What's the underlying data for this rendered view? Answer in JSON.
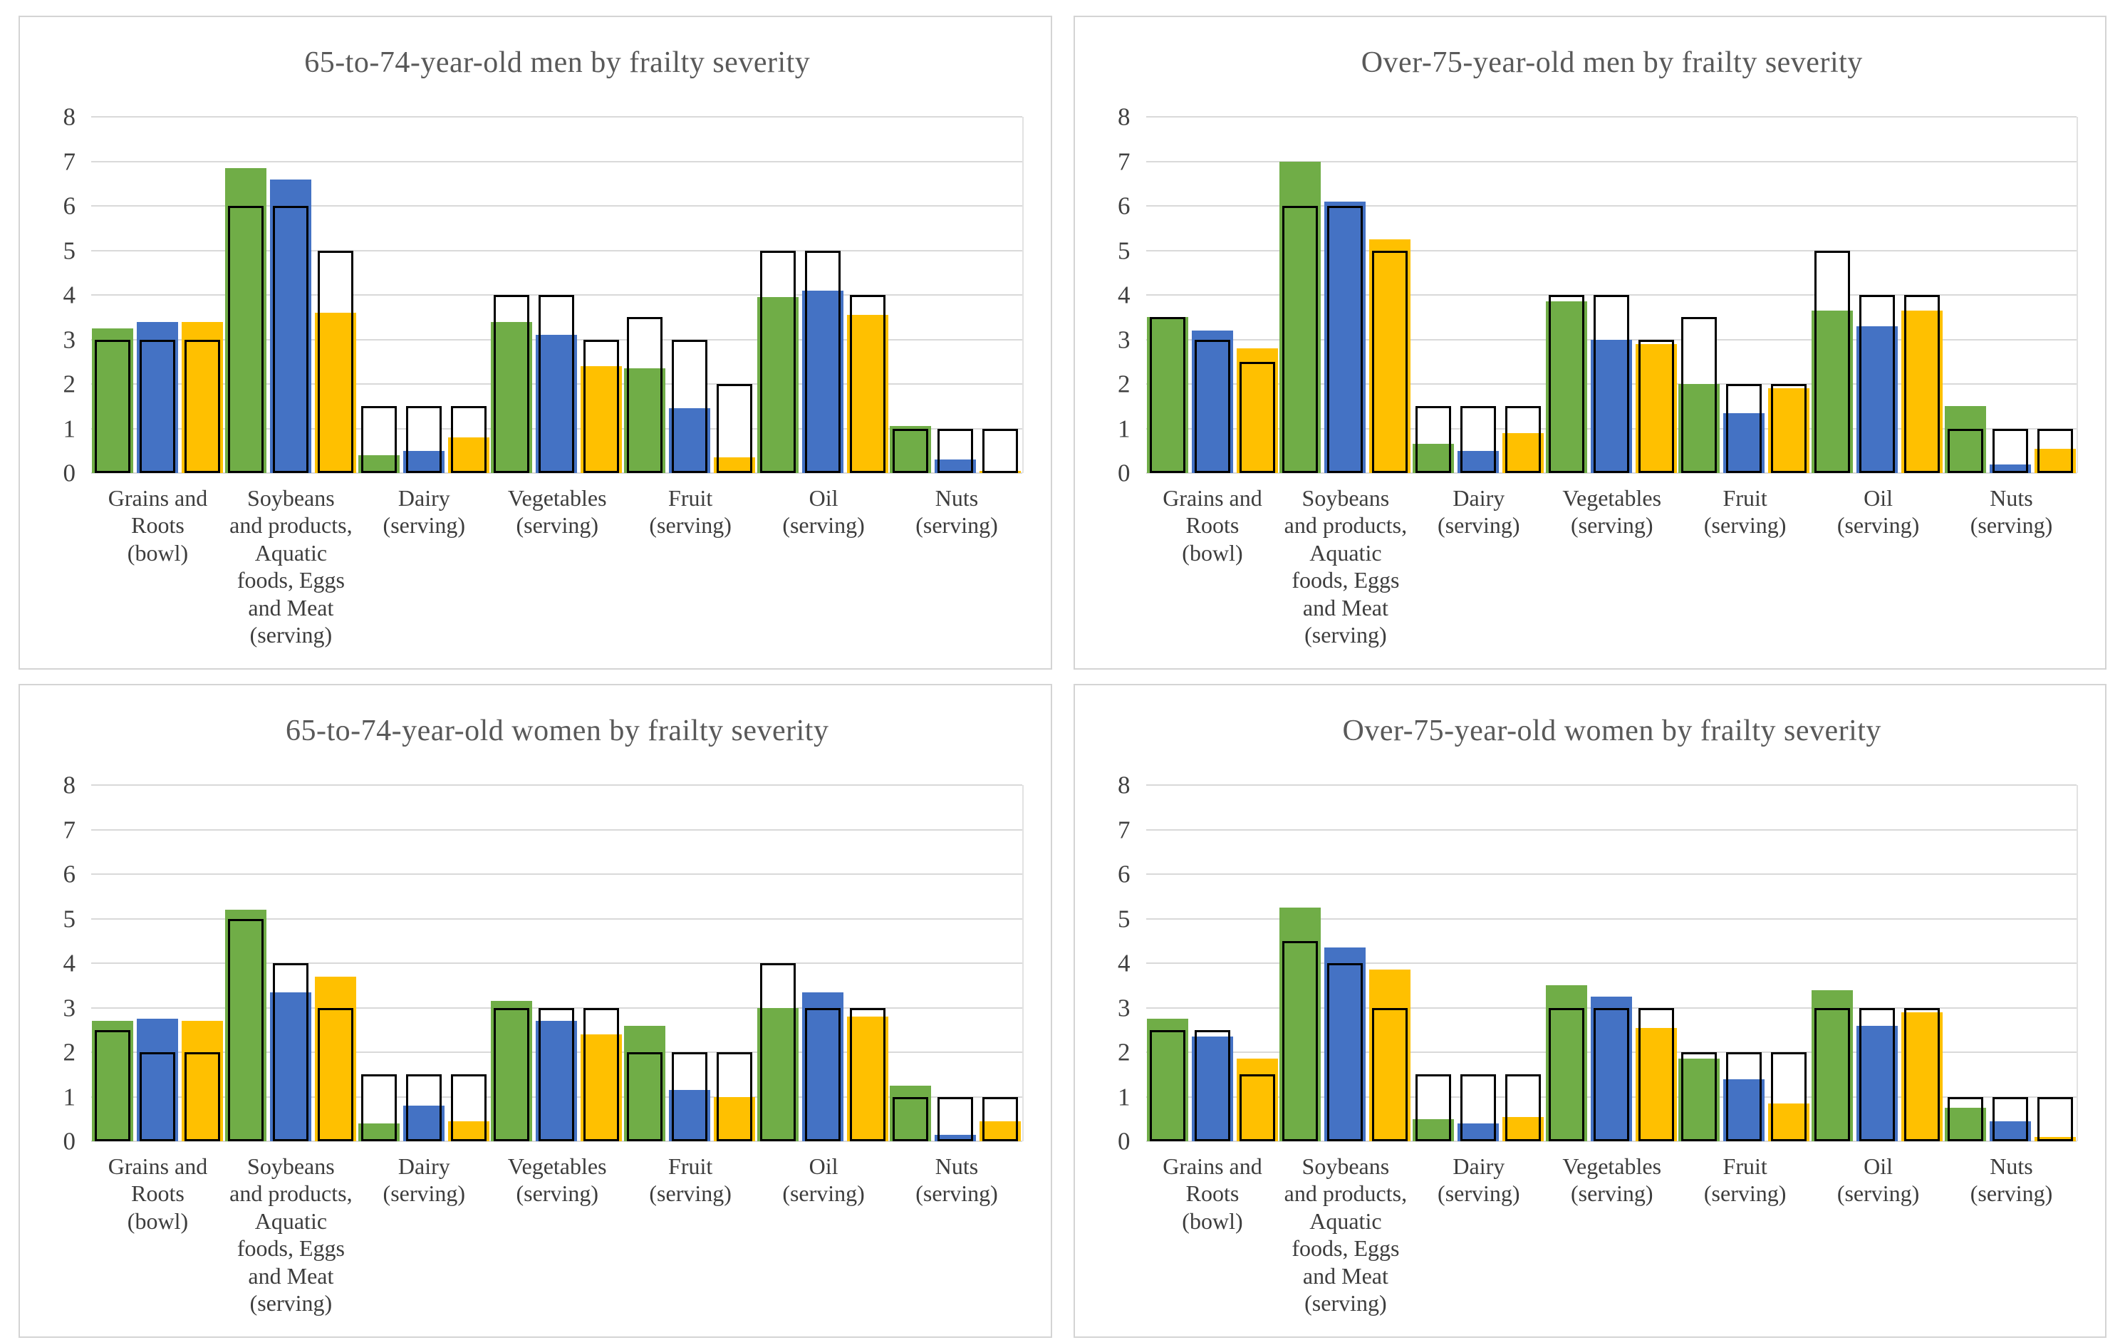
{
  "page": {
    "background": "#ffffff",
    "description_visible_text_only": "Four bar charts comparing food intake vs recommended amounts by frailty severity"
  },
  "palette": {
    "green": "#70AD47",
    "blue": "#4472C4",
    "yellow": "#FFC000",
    "outline": "#000000",
    "gridline": "#D9D9D9",
    "axis_text": "#404040",
    "title_text": "#595959",
    "panel_border": "#D4D4D4"
  },
  "axis": {
    "ymin": 0,
    "ymax": 8,
    "ticks": [
      8,
      7,
      6,
      5,
      4,
      3,
      2,
      1,
      0
    ]
  },
  "category_lines": [
    [
      "Grains and",
      "Roots",
      "(bowl)"
    ],
    [
      "Soybeans",
      "and products,",
      "Aquatic",
      "foods, Eggs",
      "and Meat",
      "(serving)"
    ],
    [
      "Dairy",
      "(serving)"
    ],
    [
      "Vegetables",
      "(serving)"
    ],
    [
      "Fruit",
      "(serving)"
    ],
    [
      "Oil",
      "(serving)"
    ],
    [
      "Nuts",
      "(serving)"
    ]
  ],
  "chart_data": [
    {
      "type": "bar",
      "title": "65-to-74-year-old men by frailty severity",
      "xlabel": "",
      "ylabel": "",
      "ylim": [
        0,
        8
      ],
      "grid": true,
      "legend": "none",
      "bar_style": "colored intake bar overlaid with black-outlined white reference box",
      "categories": [
        "Grains and Roots (bowl)",
        "Soybeans and products, Aquatic foods, Eggs and Meat (serving)",
        "Dairy (serving)",
        "Vegetables (serving)",
        "Fruit (serving)",
        "Oil (serving)",
        "Nuts (serving)"
      ],
      "series": [
        {
          "name": "green",
          "color_key": "green",
          "values": [
            3.25,
            6.85,
            0.4,
            3.4,
            2.35,
            3.95,
            1.05
          ],
          "outline_values": [
            3,
            6,
            1.5,
            4,
            3.5,
            5,
            1
          ]
        },
        {
          "name": "blue",
          "color_key": "blue",
          "values": [
            3.4,
            6.6,
            0.5,
            3.1,
            1.45,
            4.1,
            0.3
          ],
          "outline_values": [
            3,
            6,
            1.5,
            4,
            3,
            5,
            1
          ]
        },
        {
          "name": "yellow",
          "color_key": "yellow",
          "values": [
            3.4,
            3.6,
            0.8,
            2.4,
            0.35,
            3.55,
            0.05
          ],
          "outline_values": [
            3,
            5,
            1.5,
            3,
            2,
            4,
            1
          ]
        }
      ]
    },
    {
      "type": "bar",
      "title": "Over-75-year-old men by frailty severity",
      "xlabel": "",
      "ylabel": "",
      "ylim": [
        0,
        8
      ],
      "grid": true,
      "legend": "none",
      "bar_style": "colored intake bar overlaid with black-outlined white reference box",
      "categories": [
        "Grains and Roots (bowl)",
        "Soybeans and products, Aquatic foods, Eggs and Meat (serving)",
        "Dairy (serving)",
        "Vegetables (serving)",
        "Fruit (serving)",
        "Oil (serving)",
        "Nuts (serving)"
      ],
      "series": [
        {
          "name": "green",
          "color_key": "green",
          "values": [
            3.5,
            7.0,
            0.65,
            3.85,
            2.0,
            3.65,
            1.5
          ],
          "outline_values": [
            3.5,
            6,
            1.5,
            4,
            3.5,
            5,
            1
          ]
        },
        {
          "name": "blue",
          "color_key": "blue",
          "values": [
            3.2,
            6.1,
            0.5,
            3.0,
            1.35,
            3.3,
            0.2
          ],
          "outline_values": [
            3,
            6,
            1.5,
            4,
            2,
            4,
            1
          ]
        },
        {
          "name": "yellow",
          "color_key": "yellow",
          "values": [
            2.8,
            5.25,
            0.9,
            2.9,
            1.9,
            3.65,
            0.55
          ],
          "outline_values": [
            2.5,
            5,
            1.5,
            3,
            2,
            4,
            1
          ]
        }
      ]
    },
    {
      "type": "bar",
      "title": "65-to-74-year-old women by frailty severity",
      "xlabel": "",
      "ylabel": "",
      "ylim": [
        0,
        8
      ],
      "grid": true,
      "legend": "none",
      "bar_style": "colored intake bar overlaid with black-outlined white reference box",
      "categories": [
        "Grains and Roots (bowl)",
        "Soybeans and products, Aquatic foods, Eggs and Meat (serving)",
        "Dairy (serving)",
        "Vegetables (serving)",
        "Fruit (serving)",
        "Oil (serving)",
        "Nuts (serving)"
      ],
      "series": [
        {
          "name": "green",
          "color_key": "green",
          "values": [
            2.7,
            5.2,
            0.4,
            3.15,
            2.6,
            3.0,
            1.25
          ],
          "outline_values": [
            2.5,
            5,
            1.5,
            3,
            2,
            4,
            1
          ]
        },
        {
          "name": "blue",
          "color_key": "blue",
          "values": [
            2.75,
            3.35,
            0.8,
            2.7,
            1.15,
            3.35,
            0.15
          ],
          "outline_values": [
            2,
            4,
            1.5,
            3,
            2,
            3,
            1
          ]
        },
        {
          "name": "yellow",
          "color_key": "yellow",
          "values": [
            2.7,
            3.7,
            0.45,
            2.4,
            1.0,
            2.8,
            0.45
          ],
          "outline_values": [
            2,
            3,
            1.5,
            3,
            2,
            3,
            1
          ]
        }
      ]
    },
    {
      "type": "bar",
      "title": "Over-75-year-old women by frailty severity",
      "xlabel": "",
      "ylabel": "",
      "ylim": [
        0,
        8
      ],
      "grid": true,
      "legend": "none",
      "bar_style": "colored intake bar overlaid with black-outlined white reference box",
      "categories": [
        "Grains and Roots (bowl)",
        "Soybeans and products, Aquatic foods, Eggs and Meat (serving)",
        "Dairy (serving)",
        "Vegetables (serving)",
        "Fruit (serving)",
        "Oil (serving)",
        "Nuts (serving)"
      ],
      "series": [
        {
          "name": "green",
          "color_key": "green",
          "values": [
            2.75,
            5.25,
            0.5,
            3.5,
            1.85,
            3.4,
            0.75
          ],
          "outline_values": [
            2.5,
            4.5,
            1.5,
            3,
            2,
            3,
            1
          ]
        },
        {
          "name": "blue",
          "color_key": "blue",
          "values": [
            2.35,
            4.35,
            0.4,
            3.25,
            1.4,
            2.6,
            0.45
          ],
          "outline_values": [
            2.5,
            4,
            1.5,
            3,
            2,
            3,
            1
          ]
        },
        {
          "name": "yellow",
          "color_key": "yellow",
          "values": [
            1.85,
            3.85,
            0.55,
            2.55,
            0.85,
            2.9,
            0.1
          ],
          "outline_values": [
            1.5,
            3,
            1.5,
            3,
            2,
            3,
            1
          ]
        }
      ]
    }
  ]
}
